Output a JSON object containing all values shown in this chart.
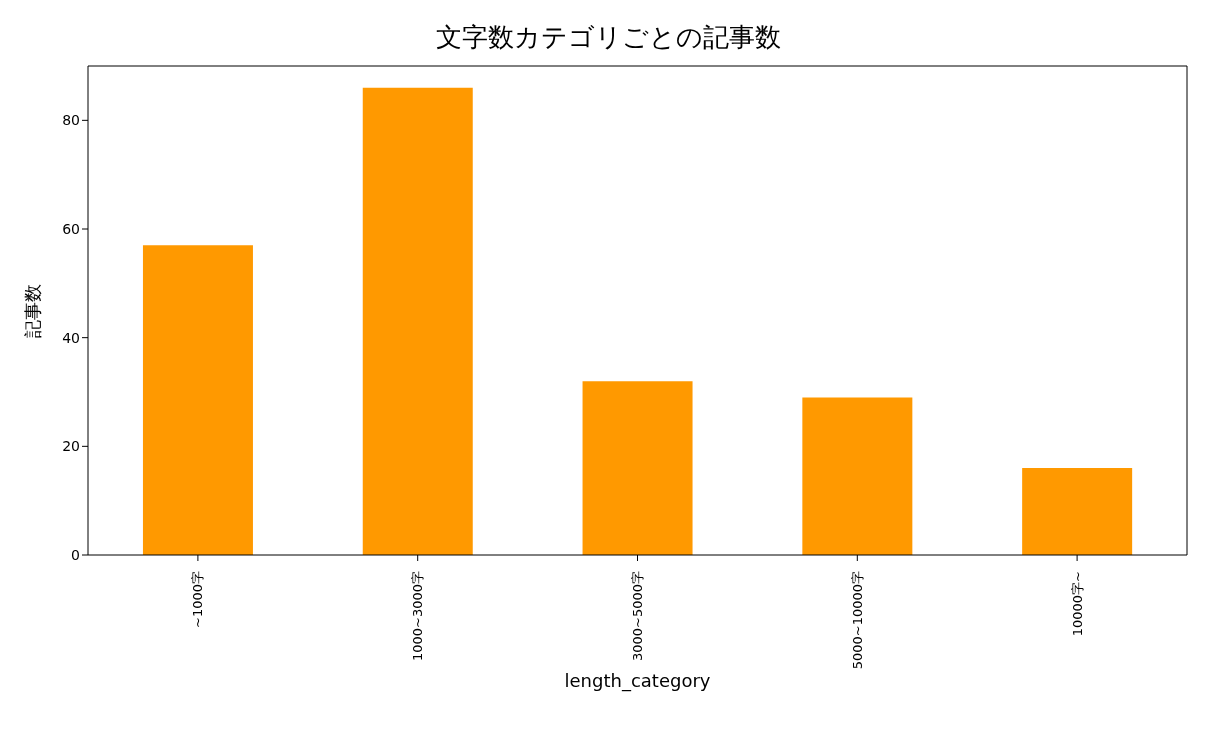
{
  "chart_data": {
    "type": "bar",
    "title": "文字数カテゴリごとの記事数",
    "xlabel": "length_category",
    "ylabel": "記事数",
    "categories": [
      "~1000字",
      "1000~3000字",
      "3000~5000字",
      "5000~10000字",
      "10000字~"
    ],
    "values": [
      57,
      86,
      32,
      29,
      16
    ],
    "color": "#ff9900",
    "ylim": [
      0,
      90
    ],
    "yticks": [
      0,
      20,
      40,
      60,
      80
    ],
    "grid": false,
    "legend": false
  }
}
